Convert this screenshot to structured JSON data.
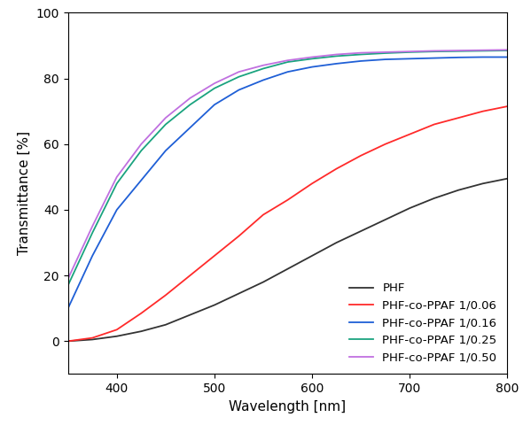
{
  "chart_data": {
    "type": "line",
    "x_label": "Wavelength [nm]",
    "y_label": "Transmittance [%]",
    "x": [
      350,
      375,
      400,
      425,
      450,
      475,
      500,
      525,
      550,
      575,
      600,
      625,
      650,
      675,
      700,
      725,
      750,
      775,
      800
    ],
    "series": [
      {
        "name": "PHF",
        "color": "#333333",
        "values": [
          0,
          0.5,
          1.5,
          3,
          5,
          8,
          11,
          14.5,
          18,
          22,
          26,
          30,
          33.5,
          37,
          40.5,
          43.5,
          46,
          48,
          49.5
        ]
      },
      {
        "name": "PHF-co-PPAF 1/0.06",
        "color": "#ff2a2a",
        "values": [
          0,
          1,
          3.5,
          8.5,
          14,
          20,
          26,
          32,
          38.5,
          43,
          48,
          52.5,
          56.5,
          60,
          63,
          66,
          68,
          70,
          71.5
        ]
      },
      {
        "name": "PHF-co-PPAF 1/0.16",
        "color": "#1f5fd6",
        "values": [
          10,
          26,
          40,
          49,
          58,
          65,
          72,
          76.5,
          79.5,
          82,
          83.5,
          84.5,
          85.3,
          85.8,
          86,
          86.2,
          86.4,
          86.5,
          86.5
        ]
      },
      {
        "name": "PHF-co-PPAF 1/0.25",
        "color": "#1aa37f",
        "values": [
          17,
          33,
          48,
          58,
          66,
          72,
          77,
          80.5,
          83,
          85,
          86,
          86.8,
          87.3,
          87.7,
          88,
          88.2,
          88.3,
          88.4,
          88.5
        ]
      },
      {
        "name": "PHF-co-PPAF 1/0.50",
        "color": "#c070e0",
        "values": [
          19,
          35,
          50,
          60,
          68,
          74,
          78.5,
          82,
          84,
          85.5,
          86.5,
          87.3,
          87.8,
          88,
          88.2,
          88.4,
          88.5,
          88.6,
          88.7
        ]
      }
    ],
    "xlim": [
      350,
      800
    ],
    "xticks": [
      400,
      500,
      600,
      700,
      800
    ],
    "ylim": [
      -10,
      100
    ],
    "yticks": [
      0,
      20,
      40,
      60,
      80,
      100
    ],
    "legend": "lower right"
  }
}
